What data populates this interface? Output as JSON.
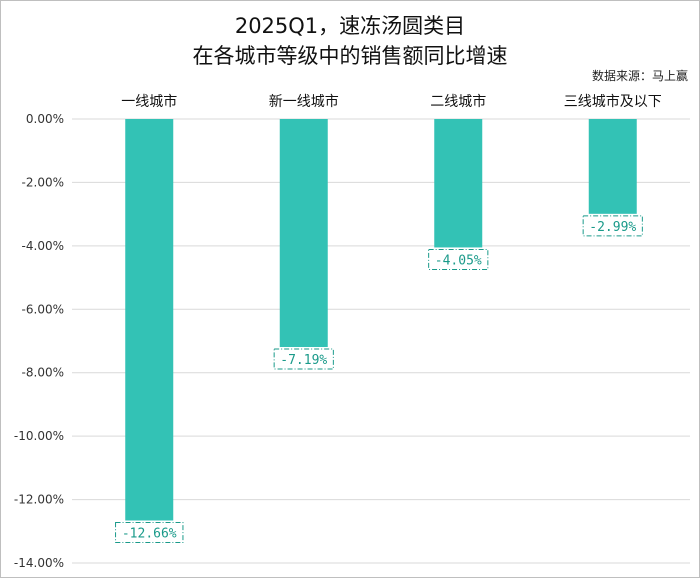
{
  "title_line1": "2025Q1，速冻汤圆类目",
  "title_line2": "在各城市等级中的销售额同比增速",
  "source": "数据来源：马上赢",
  "colors": {
    "bar": "#33c2b5",
    "label": "#1a9a8a",
    "grid": "#d9d9d9"
  },
  "chart_data": {
    "type": "bar",
    "title": "2025Q1，速冻汤圆类目 在各城市等级中的销售额同比增速",
    "categories": [
      "一线城市",
      "新一线城市",
      "二线城市",
      "三线城市及以下"
    ],
    "values": [
      -12.66,
      -7.19,
      -4.05,
      -2.99
    ],
    "data_labels": [
      "-12.66%",
      "-7.19%",
      "-4.05%",
      "-2.99%"
    ],
    "ylim": [
      -14,
      0
    ],
    "yticks": [
      0,
      -2,
      -4,
      -6,
      -8,
      -10,
      -12,
      -14
    ],
    "ytick_labels": [
      "0.00%",
      "-2.00%",
      "-4.00%",
      "-6.00%",
      "-8.00%",
      "-10.00%",
      "-12.00%",
      "-14.00%"
    ],
    "xaxis_position": "top",
    "grid": true,
    "legend": "none"
  }
}
